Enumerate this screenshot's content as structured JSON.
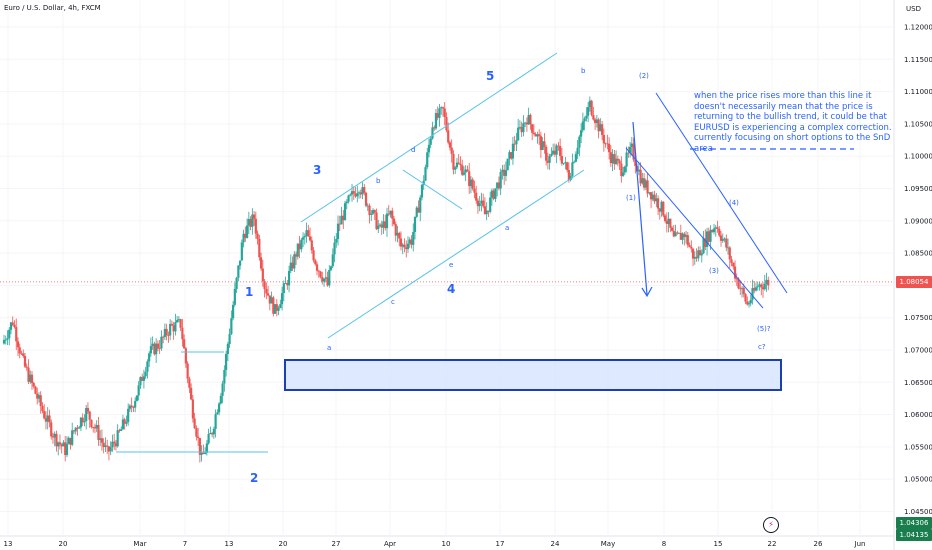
{
  "header": {
    "symbol_title": "Euro / U.S. Dollar, 4h, FXCM"
  },
  "y_axis": {
    "unit": "USD",
    "ticks": [
      "1.12000",
      "1.11500",
      "1.11000",
      "1.10500",
      "1.10000",
      "1.09500",
      "1.09000",
      "1.08500",
      "1.08000",
      "1.07500",
      "1.07000",
      "1.06500",
      "1.06000",
      "1.05500",
      "1.05000",
      "1.04500"
    ]
  },
  "x_axis": {
    "ticks": [
      "13",
      "20",
      "Mar",
      "7",
      "13",
      "20",
      "27",
      "Apr",
      "10",
      "17",
      "24",
      "May",
      "8",
      "15",
      "22",
      "26",
      "Jun"
    ]
  },
  "price_labels": {
    "last": "1.08054",
    "bottom": "1.04306",
    "bottom2": "1.04135"
  },
  "colors": {
    "up": "#26a69a",
    "down": "#ef5350",
    "annotation": "#2962ff",
    "channel": "#55c3e8",
    "last_price": "#ef5350",
    "bottom_price": "#1a7d4e"
  },
  "annotation_text": "when the price rises more than this line it doesn't necessarily mean that the price is returning to the bullish trend, it could be that EURUSD is experiencing a complex correction. currently focusing on short options to the SnD area",
  "wave_labels": {
    "w1": "1",
    "w2": "2",
    "w3": "3",
    "w4": "4",
    "w5": "5",
    "a_low": "a",
    "b_1": "b",
    "c_1": "c",
    "d_1": "d",
    "e_1": "e",
    "a_2": "a",
    "b_top": "b",
    "i1": "(1)",
    "i2": "(2)",
    "i3": "(3)",
    "i4": "(4)",
    "i5": "(5)?",
    "c_end": "c?"
  },
  "icons": {
    "replay": "lightning-icon"
  },
  "chart_data": {
    "type": "candlestick",
    "title": "Euro / U.S. Dollar, 4h, FXCM",
    "ylabel": "USD",
    "ylim": [
      1.0425,
      1.1225
    ],
    "grid": true,
    "x": [
      "Feb 13",
      "Feb 20",
      "Mar 1",
      "Mar 7",
      "Mar 13",
      "Mar 20",
      "Mar 27",
      "Apr 3",
      "Apr 10",
      "Apr 17",
      "Apr 24",
      "May 1",
      "May 8",
      "May 15",
      "May 22",
      "May 26",
      "Jun 1"
    ],
    "close_path": [
      1.071,
      1.0745,
      1.068,
      1.064,
      1.06,
      1.0565,
      1.0545,
      1.058,
      1.0605,
      1.0575,
      1.054,
      1.0565,
      1.06,
      1.064,
      1.0695,
      1.071,
      1.0735,
      1.074,
      1.062,
      1.053,
      1.0575,
      1.065,
      1.077,
      1.088,
      1.0905,
      1.08,
      1.076,
      1.08,
      1.085,
      1.088,
      1.083,
      1.08,
      1.089,
      1.093,
      1.0955,
      1.092,
      1.0885,
      1.091,
      1.086,
      1.087,
      1.095,
      1.105,
      1.107,
      1.099,
      1.098,
      1.0945,
      1.091,
      1.095,
      1.098,
      1.103,
      1.106,
      1.103,
      1.0995,
      1.101,
      1.097,
      1.103,
      1.108,
      1.104,
      1.1,
      1.098,
      1.101,
      1.096,
      1.094,
      1.0915,
      1.087,
      1.088,
      1.084,
      1.087,
      1.0895,
      1.086,
      1.081,
      1.077,
      1.08,
      1.0805
    ],
    "last": 1.08054
  }
}
